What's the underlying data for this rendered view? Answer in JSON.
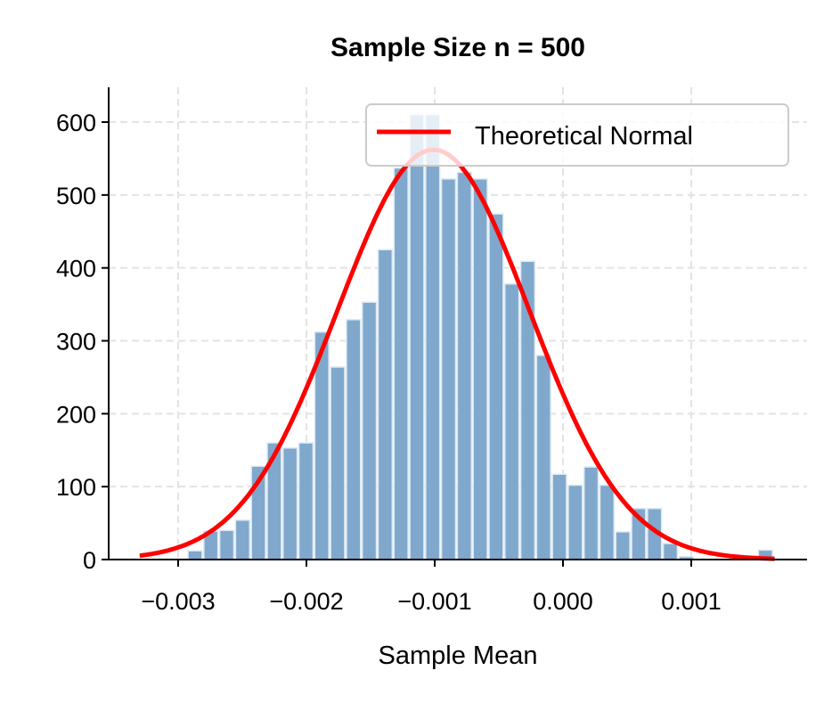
{
  "chart_data": {
    "type": "bar",
    "title": "Sample Size n = 500",
    "xlabel": "Sample Mean",
    "ylabel": "",
    "xlim": [
      -0.00354,
      0.0019
    ],
    "ylim": [
      0,
      648
    ],
    "grid": true,
    "legend_position": "top-right",
    "xticks": [
      -0.003,
      -0.002,
      -0.001,
      0.0,
      0.001
    ],
    "xtick_labels": [
      "−0.003",
      "−0.002",
      "−0.001",
      "0.000",
      "0.001"
    ],
    "yticks": [
      0,
      100,
      200,
      300,
      400,
      500,
      600
    ],
    "ytick_labels": [
      "0",
      "100",
      "200",
      "300",
      "400",
      "500",
      "600"
    ],
    "histogram": {
      "bin_start": -0.00293,
      "bin_end": 0.00164,
      "values": [
        12,
        39,
        40,
        54,
        128,
        160,
        153,
        160,
        312,
        264,
        329,
        353,
        425,
        537,
        610,
        610,
        522,
        531,
        522,
        474,
        378,
        409,
        280,
        117,
        102,
        127,
        102,
        38,
        70,
        70,
        22,
        4,
        0,
        0,
        0,
        0,
        13
      ],
      "color": "#7fa8cc",
      "edge_color": "#dde8f3"
    },
    "series": [
      {
        "name": "Theoretical Normal",
        "type": "line",
        "mean": -0.00101,
        "std": 0.00075,
        "peak": 562,
        "x_range": [
          -0.0033,
          0.00165
        ],
        "color": "#ff0000"
      }
    ]
  }
}
